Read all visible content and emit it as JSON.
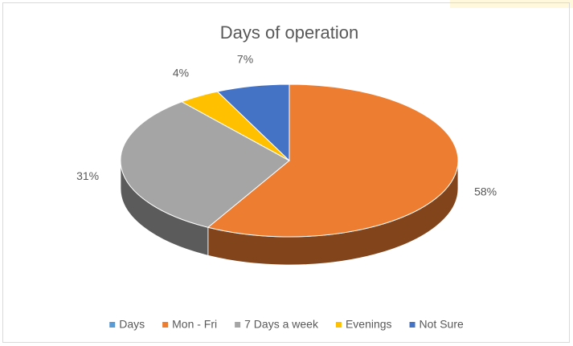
{
  "chart_data": {
    "type": "pie",
    "title": "Days of operation",
    "categories": [
      "Days",
      "Mon - Fri",
      "7 Days a week",
      "Evenings",
      "Not Sure"
    ],
    "values": [
      0,
      58,
      31,
      4,
      7
    ],
    "value_labels": [
      null,
      "58%",
      "31%",
      "4%",
      "7%"
    ],
    "colors": [
      "#5b9bd5",
      "#ed7d31",
      "#a5a5a5",
      "#ffc000",
      "#4472c4"
    ],
    "legend": "bottom"
  }
}
